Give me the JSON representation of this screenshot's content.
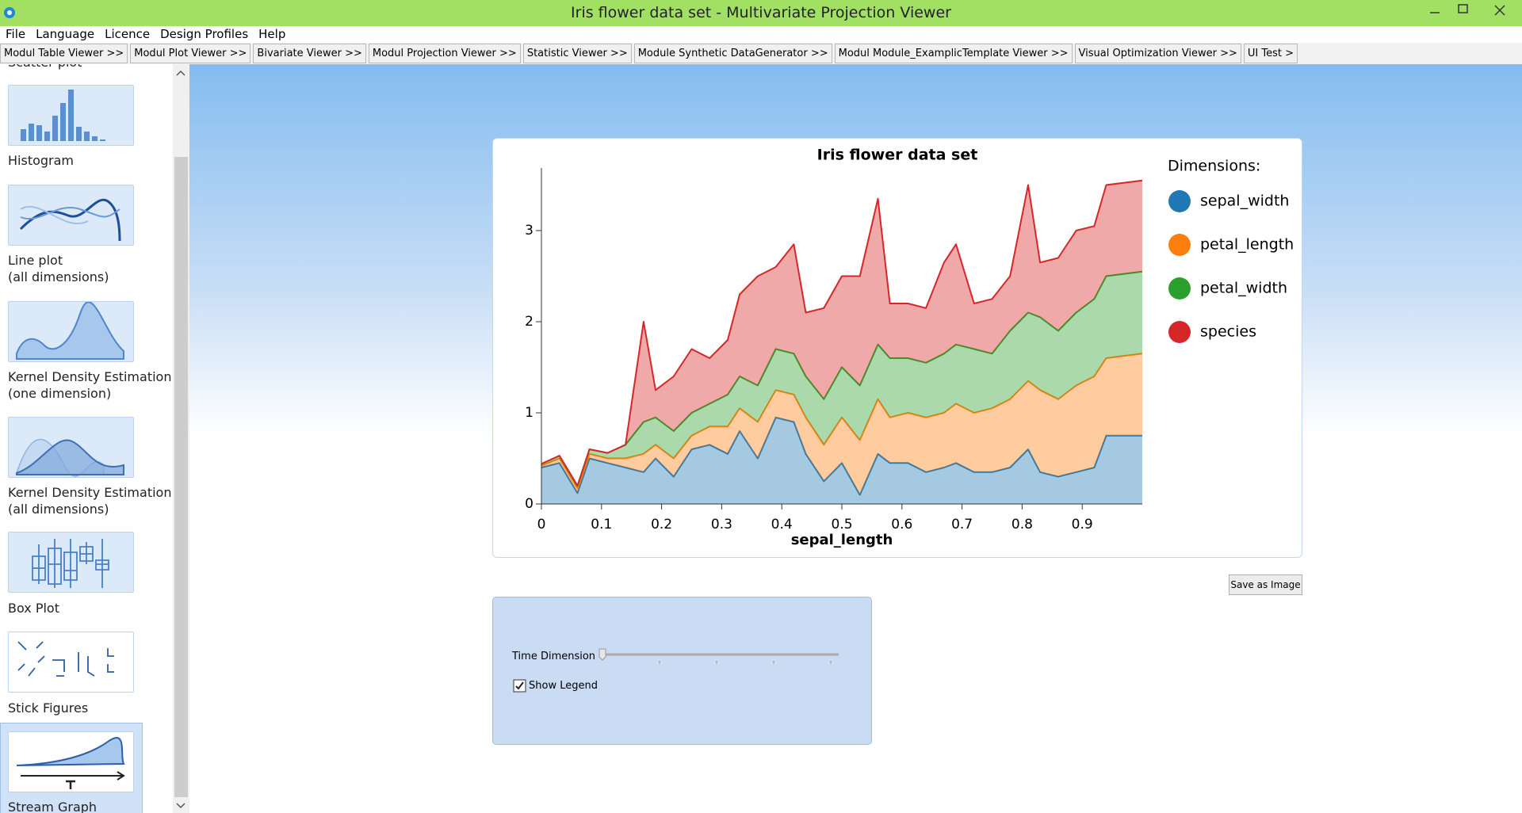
{
  "window": {
    "title": "Iris flower data set - Multivariate Projection Viewer"
  },
  "menu": [
    "File",
    "Language",
    "Licence",
    "Design Profiles",
    "Help"
  ],
  "tabs": [
    "Modul Table Viewer >>",
    "Modul Plot Viewer >>",
    "Bivariate Viewer >>",
    "Modul Projection Viewer >>",
    "Statistic Viewer >>",
    "Module Synthetic DataGenerator >>",
    "Modul Module_ExamplicTemplate Viewer >>",
    "Visual Optimization Viewer >>",
    "UI Test >"
  ],
  "sidebar": {
    "items": [
      {
        "label": [
          "Scatter plot"
        ]
      },
      {
        "label": [
          "Histogram"
        ]
      },
      {
        "label": [
          "Line plot",
          "(all dimensions)"
        ]
      },
      {
        "label": [
          "Kernel Density Estimation",
          "(one dimension)"
        ]
      },
      {
        "label": [
          "Kernel Density Estimation",
          "(all dimensions)"
        ]
      },
      {
        "label": [
          "Box Plot"
        ]
      },
      {
        "label": [
          "Stick Figures"
        ]
      },
      {
        "label": [
          "Stream Graph"
        ]
      }
    ]
  },
  "chart_data": {
    "type": "stacked_area",
    "title": "Iris flower data set",
    "x_label": "sepal_length",
    "legend_title": "Dimensions:",
    "x": [
      0,
      0.03,
      0.06,
      0.08,
      0.11,
      0.14,
      0.17,
      0.19,
      0.22,
      0.25,
      0.28,
      0.31,
      0.33,
      0.36,
      0.39,
      0.42,
      0.44,
      0.47,
      0.5,
      0.53,
      0.56,
      0.58,
      0.61,
      0.64,
      0.67,
      0.69,
      0.72,
      0.75,
      0.78,
      0.81,
      0.83,
      0.86,
      0.89,
      0.92,
      0.94,
      1.0
    ],
    "series": [
      {
        "name": "sepal_width",
        "color": "#1f77b4",
        "values": [
          0.4,
          0.45,
          0.12,
          0.5,
          0.45,
          0.4,
          0.35,
          0.5,
          0.3,
          0.6,
          0.65,
          0.55,
          0.8,
          0.5,
          0.95,
          0.9,
          0.55,
          0.25,
          0.45,
          0.1,
          0.55,
          0.45,
          0.45,
          0.35,
          0.4,
          0.45,
          0.35,
          0.35,
          0.4,
          0.6,
          0.35,
          0.3,
          0.35,
          0.4,
          0.75,
          0.75
        ]
      },
      {
        "name": "petal_length",
        "color": "#ff7f0e",
        "values": [
          0.02,
          0.05,
          0.05,
          0.05,
          0.05,
          0.1,
          0.2,
          0.15,
          0.2,
          0.15,
          0.2,
          0.3,
          0.25,
          0.4,
          0.3,
          0.3,
          0.4,
          0.4,
          0.5,
          0.6,
          0.6,
          0.5,
          0.55,
          0.6,
          0.6,
          0.65,
          0.65,
          0.7,
          0.75,
          0.75,
          0.9,
          0.85,
          0.95,
          1.0,
          0.85,
          0.9
        ]
      },
      {
        "name": "petal_width",
        "color": "#2ca02c",
        "values": [
          0.02,
          0.03,
          0.03,
          0.05,
          0.06,
          0.15,
          0.35,
          0.3,
          0.3,
          0.25,
          0.25,
          0.35,
          0.35,
          0.4,
          0.45,
          0.45,
          0.45,
          0.5,
          0.55,
          0.6,
          0.6,
          0.65,
          0.6,
          0.6,
          0.65,
          0.65,
          0.7,
          0.6,
          0.75,
          0.75,
          0.8,
          0.75,
          0.8,
          0.85,
          0.9,
          0.9
        ]
      },
      {
        "name": "species",
        "color": "#d62728",
        "values": [
          0,
          0,
          0,
          0,
          0,
          0,
          1.1,
          0.3,
          0.6,
          0.7,
          0.5,
          0.6,
          0.9,
          1.2,
          0.9,
          1.2,
          0.7,
          1.0,
          1.0,
          1.2,
          1.6,
          0.6,
          0.6,
          0.6,
          1.0,
          1.1,
          0.5,
          0.6,
          0.6,
          1.4,
          0.6,
          0.8,
          0.9,
          0.8,
          1.0,
          1.0
        ]
      }
    ],
    "xlim": [
      0,
      1
    ],
    "xticks": [
      0,
      0.1,
      0.2,
      0.3,
      0.4,
      0.5,
      0.6,
      0.7,
      0.8,
      0.9
    ],
    "ylim": [
      0,
      3.6
    ],
    "yticks": [
      0,
      1,
      2,
      3
    ]
  },
  "controls": {
    "time_dimension": "Time Dimension",
    "show_legend_label": "Show Legend",
    "show_legend": true,
    "save_button": "Save as Image"
  }
}
